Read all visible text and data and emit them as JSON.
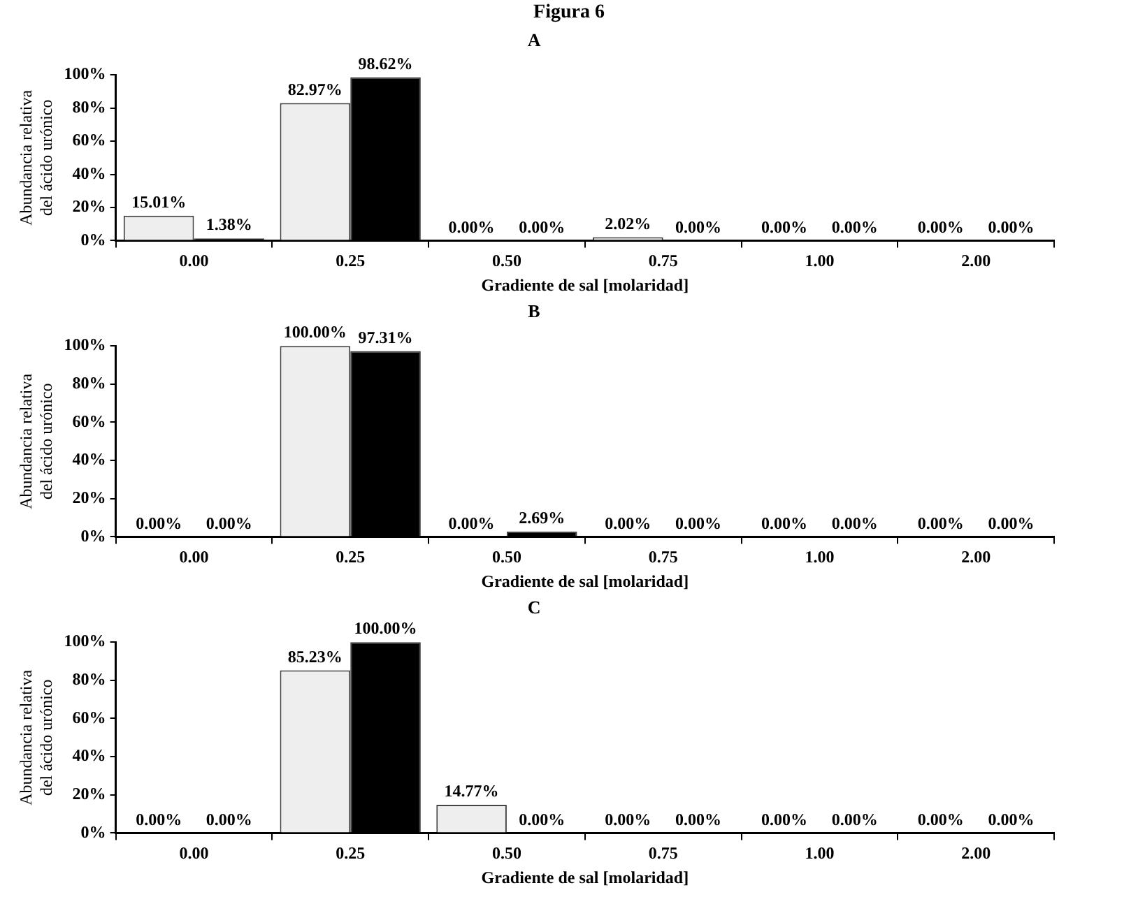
{
  "chart_data": [
    {
      "type": "bar",
      "title": "A",
      "annotations": [
        "Figura 6"
      ],
      "xlabel": "Gradiente de sal [molaridad]",
      "ylabel": "Abundancia relativa\ndel ácido urónico",
      "categories": [
        "0.00",
        "0.25",
        "0.50",
        "0.75",
        "1.00",
        "2.00"
      ],
      "series": [
        {
          "color": "#eeeeee",
          "values": [
            15.01,
            82.97,
            0,
            2.02,
            0,
            0
          ]
        },
        {
          "color": "#000000",
          "values": [
            1.38,
            98.62,
            0,
            0,
            0,
            0
          ]
        }
      ],
      "ylim": [
        0,
        100
      ],
      "yticks": [
        {
          "value": 0,
          "label": "0%"
        },
        {
          "value": 20,
          "label": "20%"
        },
        {
          "value": 40,
          "label": "40%"
        },
        {
          "value": 60,
          "label": "60%"
        },
        {
          "value": 80,
          "label": "80%"
        },
        {
          "value": 100,
          "label": "100%"
        }
      ],
      "value_labels": [
        [
          "15.01%",
          "82.97%",
          "0.00%",
          "2.02%",
          "0.00%",
          "0.00%"
        ],
        [
          "1.38%",
          "98.62%",
          "0.00%",
          "0.00%",
          "0.00%",
          "0.00%"
        ]
      ]
    },
    {
      "type": "bar",
      "title": "B",
      "xlabel": "Gradiente de sal [molaridad]",
      "ylabel": "Abundancia relativa\ndel ácido urónico",
      "categories": [
        "0.00",
        "0.25",
        "0.50",
        "0.75",
        "1.00",
        "2.00"
      ],
      "series": [
        {
          "color": "#eeeeee",
          "values": [
            0,
            100,
            0,
            0,
            0,
            0
          ]
        },
        {
          "color": "#000000",
          "values": [
            0,
            97.31,
            2.69,
            0,
            0,
            0
          ]
        }
      ],
      "ylim": [
        0,
        100
      ],
      "yticks": [
        {
          "value": 0,
          "label": "0%"
        },
        {
          "value": 20,
          "label": "20%"
        },
        {
          "value": 40,
          "label": "40%"
        },
        {
          "value": 60,
          "label": "60%"
        },
        {
          "value": 80,
          "label": "80%"
        },
        {
          "value": 100,
          "label": "100%"
        }
      ],
      "value_labels": [
        [
          "0.00%",
          "100.00%",
          "0.00%",
          "0.00%",
          "0.00%",
          "0.00%"
        ],
        [
          "0.00%",
          "97.31%",
          "2.69%",
          "0.00%",
          "0.00%",
          "0.00%"
        ]
      ]
    },
    {
      "type": "bar",
      "title": "C",
      "xlabel": "Gradiente de sal [molaridad]",
      "ylabel": "Abundancia relativa\ndel ácido urónico",
      "categories": [
        "0.00",
        "0.25",
        "0.50",
        "0.75",
        "1.00",
        "2.00"
      ],
      "series": [
        {
          "color": "#eeeeee",
          "values": [
            0,
            85.23,
            14.77,
            0,
            0,
            0
          ]
        },
        {
          "color": "#000000",
          "values": [
            0,
            100,
            0,
            0,
            0,
            0
          ]
        }
      ],
      "ylim": [
        0,
        100
      ],
      "yticks": [
        {
          "value": 0,
          "label": "0%"
        },
        {
          "value": 20,
          "label": "20%"
        },
        {
          "value": 40,
          "label": "40%"
        },
        {
          "value": 60,
          "label": "60%"
        },
        {
          "value": 80,
          "label": "80%"
        },
        {
          "value": 100,
          "label": "100%"
        }
      ],
      "value_labels": [
        [
          "0.00%",
          "85.23%",
          "14.77%",
          "0.00%",
          "0.00%",
          "0.00%"
        ],
        [
          "0.00%",
          "100.00%",
          "0.00%",
          "0.00%",
          "0.00%",
          "0.00%"
        ]
      ]
    }
  ]
}
